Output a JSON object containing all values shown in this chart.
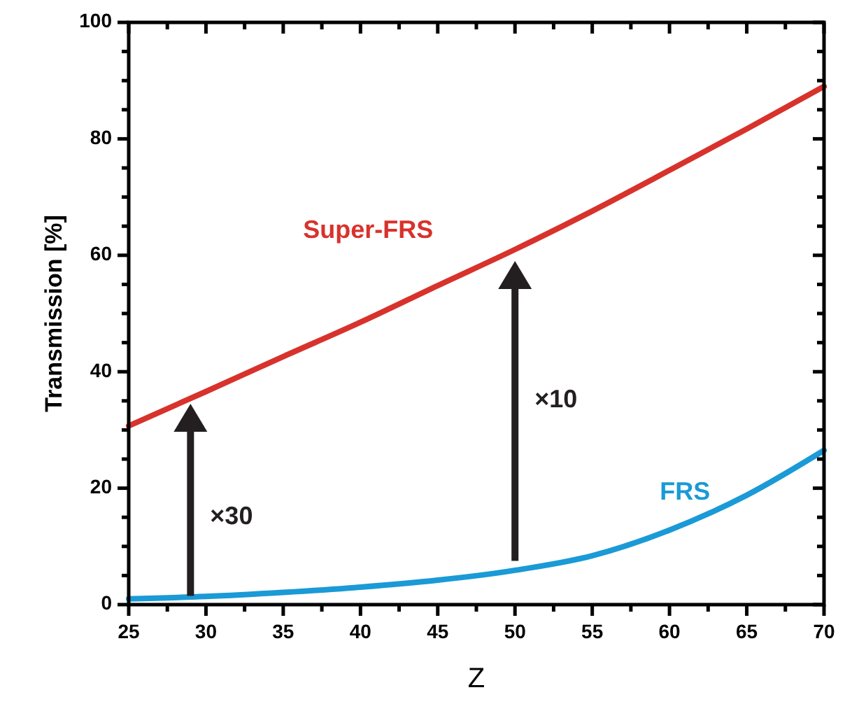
{
  "chart_data": {
    "type": "line",
    "xlabel": "Z",
    "ylabel": "Transmission [%]",
    "xlim": [
      25,
      70
    ],
    "ylim": [
      0,
      100
    ],
    "xticks": [
      25,
      {
        "value": 27.5,
        "label": null
      },
      30,
      {
        "value": 32.5,
        "label": null
      },
      35,
      {
        "value": 37.5,
        "label": null
      },
      40,
      {
        "value": 42.5,
        "label": null
      },
      45,
      {
        "value": 47.5,
        "label": null
      },
      50,
      {
        "value": 52.5,
        "label": null
      },
      55,
      {
        "value": 57.5,
        "label": null
      },
      60,
      {
        "value": 62.5,
        "label": null
      },
      65,
      {
        "value": 67.5,
        "label": null
      },
      70
    ],
    "yticks": [
      0,
      {
        "value": 5,
        "label": null
      },
      {
        "value": 10,
        "label": null
      },
      {
        "value": 15,
        "label": null
      },
      20,
      {
        "value": 25,
        "label": null
      },
      {
        "value": 30,
        "label": null
      },
      {
        "value": 35,
        "label": null
      },
      40,
      {
        "value": 45,
        "label": null
      },
      {
        "value": 50,
        "label": null
      },
      {
        "value": 55,
        "label": null
      },
      60,
      {
        "value": 65,
        "label": null
      },
      {
        "value": 70,
        "label": null
      },
      {
        "value": 75,
        "label": null
      },
      80,
      {
        "value": 85,
        "label": null
      },
      {
        "value": 90,
        "label": null
      },
      {
        "value": 95,
        "label": null
      },
      100
    ],
    "grid": false,
    "marker": "none",
    "line_style": "solid",
    "series": [
      {
        "name": "Super-FRS",
        "color": "#d8322c",
        "x": [
          25,
          30,
          35,
          40,
          45,
          50,
          55,
          60,
          65,
          70
        ],
        "values": [
          30.7,
          36.6,
          42.6,
          48.5,
          54.8,
          61,
          67.6,
          74.6,
          81.7,
          89
        ]
      },
      {
        "name": "FRS",
        "color": "#1a9ad6",
        "x": [
          25,
          30,
          35,
          40,
          45,
          50,
          55,
          60,
          65,
          70
        ],
        "values": [
          1,
          1.4,
          2.1,
          3,
          4.2,
          5.9,
          8.4,
          12.8,
          18.8,
          26.5
        ]
      }
    ],
    "annotations": [
      "×30",
      "×10"
    ]
  }
}
